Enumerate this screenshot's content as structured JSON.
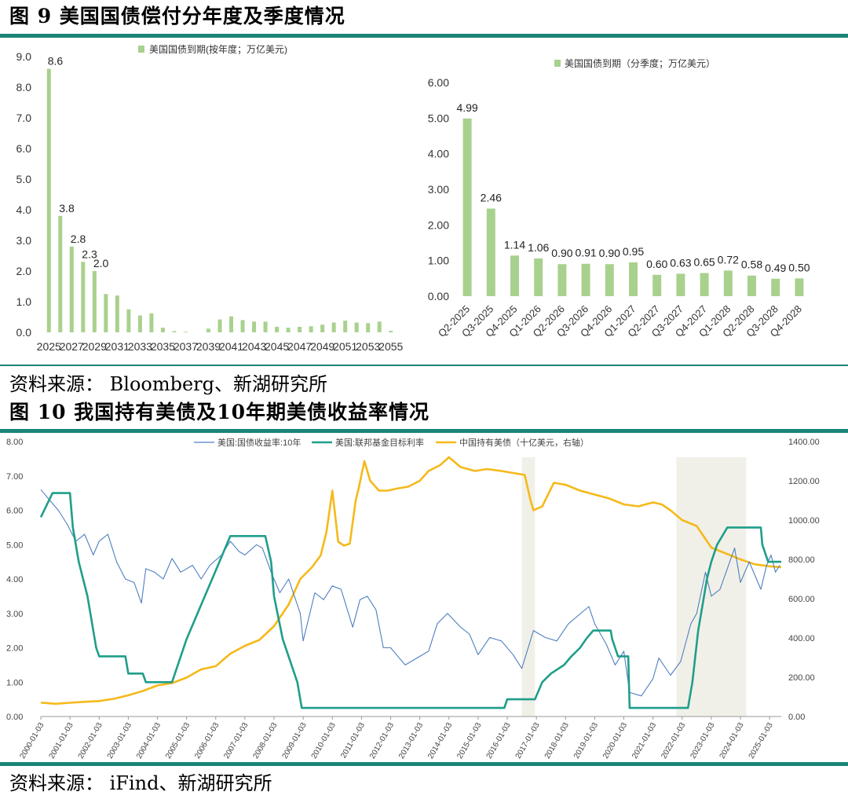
{
  "figure9": {
    "title": "图 9 美国国债偿付分年度及季度情况",
    "source": "资料来源： Bloomberg、新湖研究所"
  },
  "figure10": {
    "title": "图 10 我国持有美债及10年期美债收益率情况",
    "source": "资料来源： iFind、新湖研究所"
  },
  "colors": {
    "bar": "#a9d18e",
    "rule": "#1a8578",
    "yield10y": "#4f7fc0",
    "fedfunds": "#1f9e8a",
    "holdings": "#f5b91a",
    "shade": "#f1f0e8"
  },
  "chart_data": [
    {
      "type": "bar",
      "legend": "美国国债到期(按年度；万亿美元)",
      "categories": [
        "2025",
        "2026",
        "2027",
        "2028",
        "2029",
        "2030",
        "2031",
        "2032",
        "2033",
        "2034",
        "2035",
        "2036",
        "2037",
        "2038",
        "2039",
        "2040",
        "2041",
        "2042",
        "2043",
        "2044",
        "2045",
        "2046",
        "2047",
        "2048",
        "2049",
        "2050",
        "2051",
        "2052",
        "2053",
        "2054",
        "2055"
      ],
      "x_tick_labels": [
        "2025",
        "2027",
        "2029",
        "2031",
        "2033",
        "2035",
        "2037",
        "2039",
        "2041",
        "2043",
        "2045",
        "2047",
        "2049",
        "2051",
        "2053",
        "2055"
      ],
      "values": [
        8.6,
        3.8,
        2.8,
        2.3,
        2.0,
        1.25,
        1.2,
        0.75,
        0.55,
        0.62,
        0.15,
        0.04,
        0.02,
        0,
        0.12,
        0.42,
        0.52,
        0.4,
        0.35,
        0.35,
        0.18,
        0.15,
        0.18,
        0.2,
        0.25,
        0.32,
        0.38,
        0.32,
        0.3,
        0.35,
        0.05
      ],
      "data_labels": [
        {
          "index": 0,
          "text": "8.6"
        },
        {
          "index": 1,
          "text": "3.8"
        },
        {
          "index": 2,
          "text": "2.8"
        },
        {
          "index": 3,
          "text": "2.3"
        },
        {
          "index": 4,
          "text": "2.0"
        }
      ],
      "ylim": [
        0,
        9
      ],
      "y_ticks": [
        "0.0",
        "1.0",
        "2.0",
        "3.0",
        "4.0",
        "5.0",
        "6.0",
        "7.0",
        "8.0",
        "9.0"
      ]
    },
    {
      "type": "bar",
      "legend": "美国国债到期（分季度；万亿美元）",
      "categories": [
        "Q2-2025",
        "Q3-2025",
        "Q4-2025",
        "Q1-2026",
        "Q2-2026",
        "Q3-2026",
        "Q4-2026",
        "Q1-2027",
        "Q2-2027",
        "Q3-2027",
        "Q4-2027",
        "Q1-2028",
        "Q2-2028",
        "Q3-2028",
        "Q4-2028"
      ],
      "values": [
        4.99,
        2.46,
        1.14,
        1.06,
        0.9,
        0.91,
        0.9,
        0.95,
        0.6,
        0.63,
        0.65,
        0.72,
        0.58,
        0.49,
        0.5
      ],
      "data_labels": [
        "4.99",
        "2.46",
        "1.14",
        "1.06",
        "0.90",
        "0.91",
        "0.90",
        "0.95",
        "0.60",
        "0.63",
        "0.65",
        "0.72",
        "0.58",
        "0.49",
        "0.50"
      ],
      "ylim": [
        0,
        6
      ],
      "y_ticks": [
        "0.00",
        "1.00",
        "2.00",
        "3.00",
        "4.00",
        "5.00",
        "6.00"
      ]
    },
    {
      "type": "line",
      "x_tick_labels": [
        "2000-01-03",
        "2001-01-03",
        "2002-01-03",
        "2003-01-03",
        "2004-01-03",
        "2005-01-03",
        "2006-01-03",
        "2007-01-03",
        "2008-01-03",
        "2009-01-03",
        "2010-01-03",
        "2011-01-03",
        "2012-01-03",
        "2013-01-03",
        "2014-01-03",
        "2015-01-03",
        "2016-01-03",
        "2017-01-03",
        "2018-01-03",
        "2019-01-03",
        "2020-01-03",
        "2021-01-03",
        "2022-01-03",
        "2023-01-03",
        "2024-01-03",
        "2025-01-03"
      ],
      "x_range": [
        2000.0,
        2025.4
      ],
      "y_left_ticks": [
        "0.00",
        "1.00",
        "2.00",
        "3.00",
        "4.00",
        "5.00",
        "6.00",
        "7.00",
        "8.00"
      ],
      "y_left_lim": [
        0,
        8
      ],
      "y_right_ticks": [
        "0.00",
        "200.00",
        "400.00",
        "600.00",
        "800.00",
        "1000.00",
        "1200.00",
        "1400.00"
      ],
      "y_right_lim": [
        0,
        1400
      ],
      "shaded_ranges": [
        [
          2016.5,
          2016.95
        ],
        [
          2021.8,
          2024.2
        ]
      ],
      "series": [
        {
          "name": "美国:国债收益率:10年",
          "axis": "left",
          "style": "thin",
          "points": [
            [
              2000.0,
              6.6
            ],
            [
              2000.3,
              6.3
            ],
            [
              2000.6,
              6.0
            ],
            [
              2000.9,
              5.6
            ],
            [
              2001.2,
              5.1
            ],
            [
              2001.5,
              5.3
            ],
            [
              2001.8,
              4.7
            ],
            [
              2002.0,
              5.1
            ],
            [
              2002.3,
              5.3
            ],
            [
              2002.6,
              4.5
            ],
            [
              2002.9,
              4.0
            ],
            [
              2003.2,
              3.9
            ],
            [
              2003.45,
              3.3
            ],
            [
              2003.6,
              4.3
            ],
            [
              2003.9,
              4.2
            ],
            [
              2004.2,
              4.0
            ],
            [
              2004.5,
              4.6
            ],
            [
              2004.8,
              4.2
            ],
            [
              2005.2,
              4.4
            ],
            [
              2005.5,
              4.0
            ],
            [
              2005.8,
              4.4
            ],
            [
              2006.2,
              4.7
            ],
            [
              2006.5,
              5.1
            ],
            [
              2006.8,
              4.8
            ],
            [
              2007.0,
              4.7
            ],
            [
              2007.4,
              5.0
            ],
            [
              2007.6,
              4.9
            ],
            [
              2007.9,
              4.2
            ],
            [
              2008.2,
              3.6
            ],
            [
              2008.5,
              4.0
            ],
            [
              2008.9,
              3.0
            ],
            [
              2009.0,
              2.2
            ],
            [
              2009.4,
              3.6
            ],
            [
              2009.7,
              3.4
            ],
            [
              2010.0,
              3.8
            ],
            [
              2010.3,
              3.7
            ],
            [
              2010.7,
              2.6
            ],
            [
              2010.95,
              3.4
            ],
            [
              2011.2,
              3.5
            ],
            [
              2011.5,
              3.1
            ],
            [
              2011.75,
              2.0
            ],
            [
              2012.0,
              2.0
            ],
            [
              2012.5,
              1.5
            ],
            [
              2012.9,
              1.7
            ],
            [
              2013.3,
              1.9
            ],
            [
              2013.6,
              2.7
            ],
            [
              2013.95,
              3.0
            ],
            [
              2014.4,
              2.6
            ],
            [
              2014.7,
              2.4
            ],
            [
              2015.0,
              1.8
            ],
            [
              2015.4,
              2.3
            ],
            [
              2015.8,
              2.2
            ],
            [
              2016.2,
              1.8
            ],
            [
              2016.5,
              1.4
            ],
            [
              2016.9,
              2.5
            ],
            [
              2017.3,
              2.3
            ],
            [
              2017.7,
              2.2
            ],
            [
              2018.1,
              2.7
            ],
            [
              2018.8,
              3.2
            ],
            [
              2019.0,
              2.7
            ],
            [
              2019.4,
              2.1
            ],
            [
              2019.7,
              1.5
            ],
            [
              2020.0,
              1.9
            ],
            [
              2020.2,
              0.7
            ],
            [
              2020.6,
              0.6
            ],
            [
              2021.0,
              1.1
            ],
            [
              2021.2,
              1.7
            ],
            [
              2021.6,
              1.2
            ],
            [
              2021.95,
              1.6
            ],
            [
              2022.3,
              2.7
            ],
            [
              2022.5,
              3.0
            ],
            [
              2022.8,
              4.2
            ],
            [
              2023.0,
              3.5
            ],
            [
              2023.3,
              3.7
            ],
            [
              2023.8,
              4.9
            ],
            [
              2024.0,
              3.9
            ],
            [
              2024.3,
              4.5
            ],
            [
              2024.7,
              3.7
            ],
            [
              2024.9,
              4.4
            ],
            [
              2025.05,
              4.7
            ],
            [
              2025.2,
              4.2
            ],
            [
              2025.35,
              4.4
            ]
          ]
        },
        {
          "name": "美国:联邦基金目标利率",
          "axis": "left",
          "style": "thick",
          "points": [
            [
              2000.0,
              5.8
            ],
            [
              2000.4,
              6.5
            ],
            [
              2001.0,
              6.5
            ],
            [
              2001.1,
              5.5
            ],
            [
              2001.3,
              4.5
            ],
            [
              2001.6,
              3.5
            ],
            [
              2001.9,
              2.0
            ],
            [
              2002.0,
              1.75
            ],
            [
              2002.9,
              1.75
            ],
            [
              2003.0,
              1.25
            ],
            [
              2003.5,
              1.25
            ],
            [
              2003.6,
              1.0
            ],
            [
              2004.5,
              1.0
            ],
            [
              2004.6,
              1.25
            ],
            [
              2005.0,
              2.25
            ],
            [
              2005.5,
              3.25
            ],
            [
              2006.0,
              4.25
            ],
            [
              2006.5,
              5.25
            ],
            [
              2007.7,
              5.25
            ],
            [
              2007.9,
              4.5
            ],
            [
              2008.0,
              3.5
            ],
            [
              2008.3,
              2.25
            ],
            [
              2008.8,
              1.0
            ],
            [
              2008.95,
              0.25
            ],
            [
              2015.9,
              0.25
            ],
            [
              2016.0,
              0.5
            ],
            [
              2016.95,
              0.5
            ],
            [
              2017.2,
              1.0
            ],
            [
              2017.5,
              1.25
            ],
            [
              2017.95,
              1.5
            ],
            [
              2018.2,
              1.75
            ],
            [
              2018.5,
              2.0
            ],
            [
              2018.7,
              2.25
            ],
            [
              2018.95,
              2.5
            ],
            [
              2019.55,
              2.5
            ],
            [
              2019.6,
              2.25
            ],
            [
              2019.7,
              2.0
            ],
            [
              2019.8,
              1.75
            ],
            [
              2020.15,
              1.75
            ],
            [
              2020.2,
              0.25
            ],
            [
              2022.2,
              0.25
            ],
            [
              2022.35,
              1.0
            ],
            [
              2022.45,
              1.75
            ],
            [
              2022.55,
              2.5
            ],
            [
              2022.7,
              3.25
            ],
            [
              2022.85,
              4.0
            ],
            [
              2023.0,
              4.5
            ],
            [
              2023.2,
              5.0
            ],
            [
              2023.55,
              5.5
            ],
            [
              2024.7,
              5.5
            ],
            [
              2024.75,
              5.0
            ],
            [
              2024.85,
              4.75
            ],
            [
              2024.95,
              4.5
            ],
            [
              2025.4,
              4.5
            ]
          ]
        },
        {
          "name": "中国持有美债（十亿美元，右轴）",
          "axis": "right",
          "style": "medium",
          "points": [
            [
              2000.0,
              71
            ],
            [
              2000.5,
              65
            ],
            [
              2001.0,
              70
            ],
            [
              2001.5,
              75
            ],
            [
              2002.0,
              79
            ],
            [
              2002.5,
              90
            ],
            [
              2003.0,
              108
            ],
            [
              2003.5,
              130
            ],
            [
              2004.0,
              158
            ],
            [
              2004.5,
              170
            ],
            [
              2005.0,
              198
            ],
            [
              2005.5,
              240
            ],
            [
              2006.0,
              256
            ],
            [
              2006.5,
              320
            ],
            [
              2007.0,
              360
            ],
            [
              2007.5,
              390
            ],
            [
              2008.0,
              460
            ],
            [
              2008.5,
              570
            ],
            [
              2008.9,
              700
            ],
            [
              2009.3,
              760
            ],
            [
              2009.6,
              820
            ],
            [
              2009.8,
              940
            ],
            [
              2010.0,
              1150
            ],
            [
              2010.2,
              890
            ],
            [
              2010.4,
              870
            ],
            [
              2010.6,
              880
            ],
            [
              2010.8,
              1100
            ],
            [
              2010.9,
              1160
            ],
            [
              2011.1,
              1300
            ],
            [
              2011.3,
              1200
            ],
            [
              2011.6,
              1150
            ],
            [
              2011.9,
              1150
            ],
            [
              2012.2,
              1160
            ],
            [
              2012.6,
              1170
            ],
            [
              2013.0,
              1200
            ],
            [
              2013.3,
              1250
            ],
            [
              2013.7,
              1280
            ],
            [
              2014.0,
              1320
            ],
            [
              2014.4,
              1270
            ],
            [
              2014.9,
              1250
            ],
            [
              2015.3,
              1260
            ],
            [
              2015.8,
              1250
            ],
            [
              2016.2,
              1240
            ],
            [
              2016.6,
              1230
            ],
            [
              2016.8,
              1100
            ],
            [
              2016.9,
              1050
            ],
            [
              2017.2,
              1070
            ],
            [
              2017.6,
              1190
            ],
            [
              2018.0,
              1180
            ],
            [
              2018.5,
              1150
            ],
            [
              2019.0,
              1130
            ],
            [
              2019.5,
              1110
            ],
            [
              2020.0,
              1080
            ],
            [
              2020.5,
              1070
            ],
            [
              2021.0,
              1090
            ],
            [
              2021.3,
              1080
            ],
            [
              2021.6,
              1050
            ],
            [
              2022.0,
              1000
            ],
            [
              2022.5,
              970
            ],
            [
              2023.0,
              860
            ],
            [
              2023.5,
              830
            ],
            [
              2024.0,
              800
            ],
            [
              2024.5,
              775
            ],
            [
              2025.0,
              765
            ],
            [
              2025.4,
              760
            ]
          ]
        }
      ]
    }
  ]
}
